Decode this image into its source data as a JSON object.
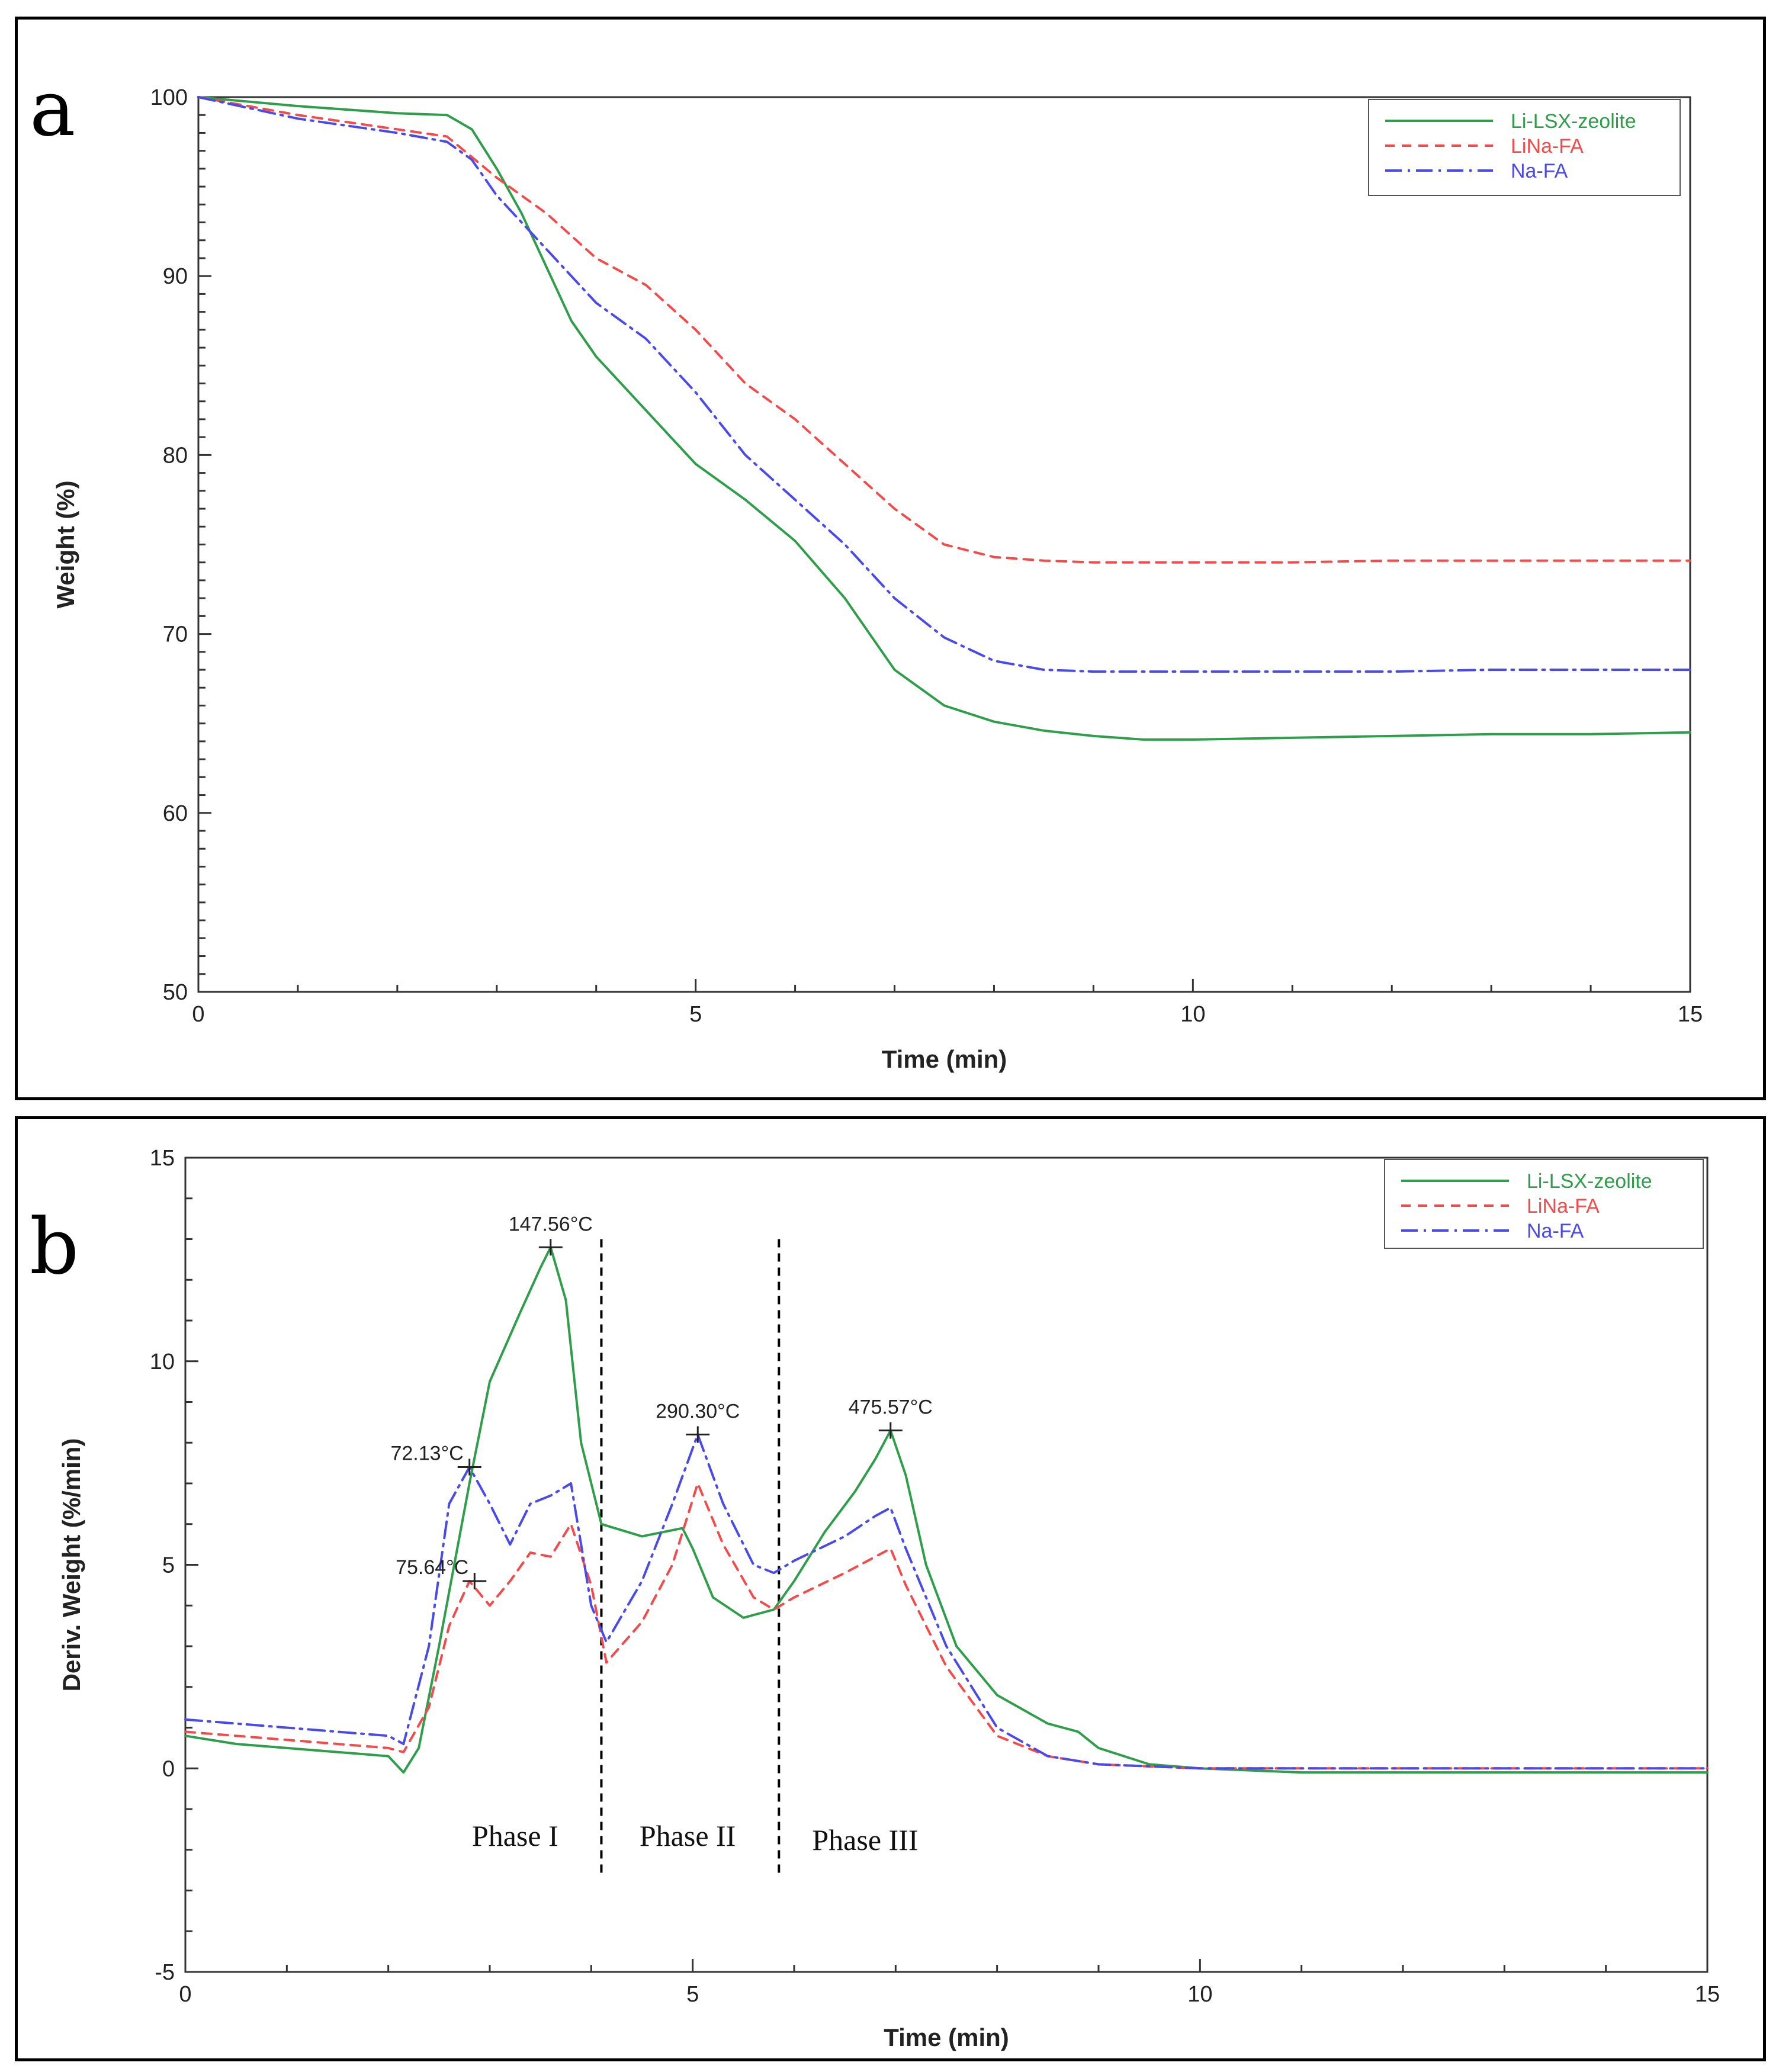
{
  "chart_data": [
    {
      "type": "line",
      "panel_label": "a",
      "xlabel": "Time (min)",
      "ylabel": "Weight (%)",
      "xlim": [
        0,
        15
      ],
      "ylim": [
        50,
        100
      ],
      "xticks": [
        0,
        5,
        10,
        15
      ],
      "yticks": [
        50,
        60,
        70,
        80,
        90,
        100
      ],
      "legend_position": "top-right",
      "series": [
        {
          "name": "Li-LSX-zeolite",
          "color": "#2e9e4a",
          "dash": "",
          "x": [
            0,
            1,
            2,
            2.5,
            2.75,
            3.0,
            3.25,
            3.5,
            3.75,
            4.0,
            4.5,
            5.0,
            5.5,
            6.0,
            6.5,
            7.0,
            7.5,
            8.0,
            8.5,
            9.0,
            9.5,
            10,
            11,
            12,
            13,
            14,
            15
          ],
          "y": [
            100,
            99.5,
            99.1,
            99.0,
            98.2,
            96.0,
            93.5,
            90.5,
            87.5,
            85.5,
            82.5,
            79.5,
            77.5,
            75.2,
            72.0,
            68.0,
            66.0,
            65.1,
            64.6,
            64.3,
            64.1,
            64.1,
            64.2,
            64.3,
            64.4,
            64.4,
            64.5
          ]
        },
        {
          "name": "LiNa-FA",
          "color": "#f24b4b",
          "dash": "16,12",
          "x": [
            0,
            1,
            2,
            2.5,
            3.0,
            3.5,
            4.0,
            4.5,
            5.0,
            5.5,
            6.0,
            6.5,
            7.0,
            7.5,
            8.0,
            8.5,
            9.0,
            10,
            11,
            12,
            13,
            14,
            15
          ],
          "y": [
            100,
            99.0,
            98.2,
            97.8,
            95.5,
            93.5,
            91.0,
            89.5,
            87.0,
            84.0,
            82.0,
            79.5,
            77.0,
            75.0,
            74.3,
            74.1,
            74.0,
            74.0,
            74.0,
            74.1,
            74.1,
            74.1,
            74.1
          ]
        },
        {
          "name": "Na-FA",
          "color": "#4a4ae8",
          "dash": "28,10,4,10",
          "x": [
            0,
            1,
            2,
            2.5,
            2.75,
            3.0,
            3.5,
            4.0,
            4.5,
            5.0,
            5.5,
            6.0,
            6.5,
            7.0,
            7.5,
            8.0,
            8.5,
            9.0,
            10,
            11,
            12,
            13,
            14,
            15
          ],
          "y": [
            100,
            98.8,
            98.0,
            97.5,
            96.5,
            94.5,
            91.5,
            88.5,
            86.5,
            83.5,
            80.0,
            77.5,
            75.0,
            72.0,
            69.8,
            68.5,
            68.0,
            67.9,
            67.9,
            67.9,
            67.9,
            68.0,
            68.0,
            68.0
          ]
        }
      ]
    },
    {
      "type": "line",
      "panel_label": "b",
      "xlabel": "Time (min)",
      "ylabel": "Deriv. Weight (%/min)",
      "xlim": [
        0,
        15
      ],
      "ylim": [
        -5,
        15
      ],
      "xticks": [
        0,
        5,
        10,
        15
      ],
      "yticks": [
        -5,
        0,
        5,
        10,
        15
      ],
      "legend_position": "top-right",
      "series": [
        {
          "name": "Li-LSX-zeolite",
          "color": "#2e9e4a",
          "dash": "",
          "x": [
            0,
            0.5,
            1,
            1.5,
            2.0,
            2.15,
            2.3,
            2.5,
            2.8,
            3.0,
            3.3,
            3.5,
            3.6,
            3.75,
            3.9,
            4.1,
            4.5,
            4.9,
            5.0,
            5.2,
            5.5,
            5.8,
            6.0,
            6.3,
            6.6,
            6.8,
            6.95,
            7.1,
            7.3,
            7.6,
            8.0,
            8.5,
            8.8,
            9.0,
            9.5,
            10,
            11,
            12,
            13,
            14,
            15
          ],
          "y": [
            0.8,
            0.6,
            0.5,
            0.4,
            0.3,
            -0.1,
            0.5,
            3.0,
            7.0,
            9.5,
            11.2,
            12.3,
            12.8,
            11.5,
            8.0,
            6.0,
            5.7,
            5.9,
            5.4,
            4.2,
            3.7,
            3.9,
            4.6,
            5.8,
            6.8,
            7.6,
            8.3,
            7.2,
            5.0,
            3.0,
            1.8,
            1.1,
            0.9,
            0.5,
            0.1,
            0.0,
            -0.1,
            -0.1,
            -0.1,
            -0.1,
            -0.1
          ]
        },
        {
          "name": "LiNa-FA",
          "color": "#f24b4b",
          "dash": "16,12",
          "x": [
            0,
            0.5,
            1,
            1.5,
            2.0,
            2.15,
            2.4,
            2.6,
            2.8,
            3.0,
            3.2,
            3.4,
            3.6,
            3.8,
            4.0,
            4.15,
            4.5,
            4.8,
            5.05,
            5.3,
            5.6,
            5.8,
            6.0,
            6.5,
            6.8,
            6.95,
            7.1,
            7.5,
            8.0,
            8.5,
            9.0,
            10,
            11,
            12,
            13,
            14,
            15
          ],
          "y": [
            0.9,
            0.8,
            0.7,
            0.6,
            0.5,
            0.4,
            1.5,
            3.5,
            4.6,
            4.0,
            4.6,
            5.3,
            5.2,
            6.0,
            4.5,
            2.6,
            3.6,
            5.0,
            7.0,
            5.5,
            4.2,
            3.9,
            4.2,
            4.8,
            5.2,
            5.4,
            4.5,
            2.5,
            0.8,
            0.3,
            0.1,
            0.0,
            0.0,
            0.0,
            0.0,
            0.0,
            0.0
          ]
        },
        {
          "name": "Na-FA",
          "color": "#4a4ae8",
          "dash": "28,10,4,10",
          "x": [
            0,
            0.5,
            1,
            1.5,
            2.0,
            2.15,
            2.4,
            2.6,
            2.8,
            3.0,
            3.2,
            3.4,
            3.6,
            3.8,
            4.0,
            4.15,
            4.5,
            4.8,
            5.05,
            5.3,
            5.6,
            5.8,
            6.0,
            6.5,
            6.8,
            6.95,
            7.1,
            7.5,
            8.0,
            8.5,
            9.0,
            10,
            11,
            12,
            13,
            14,
            15
          ],
          "y": [
            1.2,
            1.1,
            1.0,
            0.9,
            0.8,
            0.6,
            3.0,
            6.5,
            7.4,
            6.5,
            5.5,
            6.5,
            6.7,
            7.0,
            4.0,
            3.1,
            4.6,
            6.5,
            8.2,
            6.5,
            5.0,
            4.8,
            5.1,
            5.7,
            6.2,
            6.4,
            5.4,
            3.0,
            1.0,
            0.3,
            0.1,
            0.0,
            0.0,
            0.0,
            0.0,
            0.0,
            0.0
          ]
        }
      ],
      "annotations": [
        {
          "text": "147.56°C",
          "x": 3.6,
          "y": 12.8
        },
        {
          "text": "72.13°C",
          "x": 2.8,
          "y": 7.4
        },
        {
          "text": "290.30°C",
          "x": 5.05,
          "y": 8.2
        },
        {
          "text": "475.57°C",
          "x": 6.95,
          "y": 8.3
        },
        {
          "text": "75.64°C",
          "x": 2.85,
          "y": 4.6
        }
      ],
      "phase_boundaries": [
        4.1,
        5.85
      ],
      "phases": [
        {
          "label": "Phase I",
          "x": 3.25,
          "y": -1.9
        },
        {
          "label": "Phase II",
          "x": 4.95,
          "y": -1.9
        },
        {
          "label": "Phase III",
          "x": 6.7,
          "y": -2.0
        }
      ]
    }
  ]
}
